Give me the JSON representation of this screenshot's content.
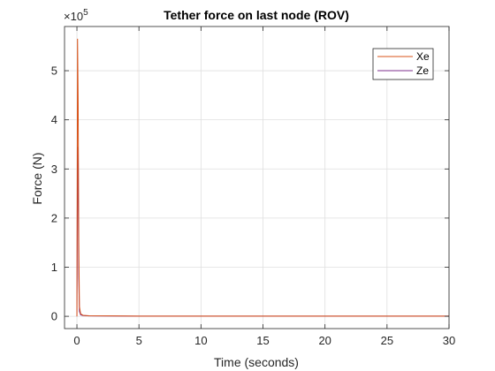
{
  "chart_data": {
    "type": "line",
    "title": "Tether force on last node (ROV)",
    "xlabel": "Time (seconds)",
    "ylabel": "Force (N)",
    "xlim": [
      -1,
      30
    ],
    "ylim": [
      -25000,
      590000
    ],
    "x_ticks": [
      0,
      5,
      10,
      15,
      20,
      25,
      30
    ],
    "y_ticks": [
      0,
      100000,
      200000,
      300000,
      400000,
      500000
    ],
    "y_tick_labels": [
      "0",
      "1",
      "2",
      "3",
      "4",
      "5"
    ],
    "y_exponent": "×10",
    "y_exponent_power": "5",
    "grid": true,
    "legend_position": "top-right",
    "series": [
      {
        "name": "Xe",
        "color": "#D95319",
        "x": [
          0,
          0.05,
          0.1,
          0.15,
          0.2,
          0.3,
          0.5,
          1,
          5,
          10,
          15,
          20,
          25,
          30
        ],
        "y": [
          0,
          565000,
          430000,
          150000,
          20000,
          5000,
          2000,
          1000,
          500,
          500,
          500,
          500,
          500,
          500
        ]
      },
      {
        "name": "Ze",
        "color": "#7E2F8E",
        "x": [
          0,
          0.05,
          0.1,
          0.15,
          0.2,
          0.3,
          0.5,
          1,
          5,
          10,
          15,
          20,
          25,
          30
        ],
        "y": [
          0,
          345000,
          250000,
          80000,
          10000,
          3000,
          1500,
          800,
          300,
          300,
          300,
          300,
          300,
          300
        ]
      }
    ]
  }
}
